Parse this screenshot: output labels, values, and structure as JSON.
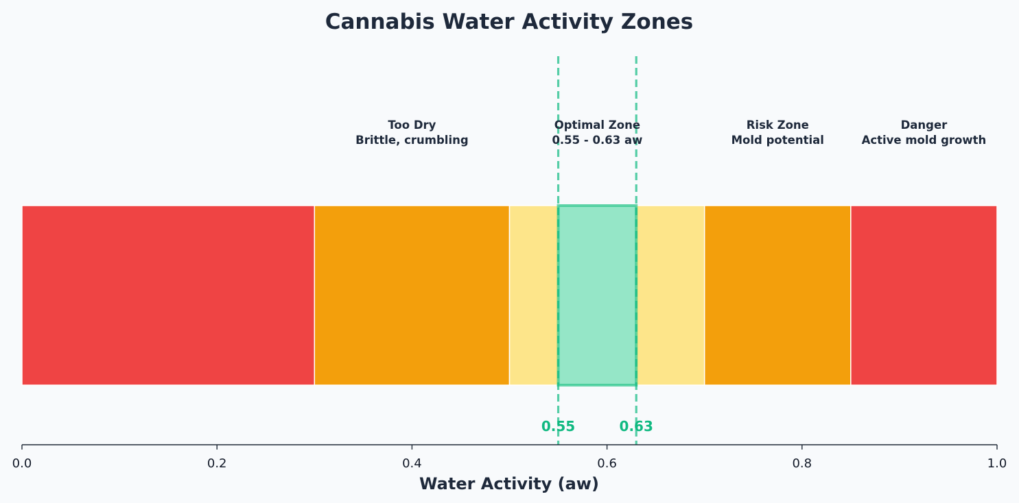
{
  "chart_data": {
    "type": "bar",
    "title": "Cannabis Water Activity Zones",
    "xlabel": "Water Activity (aw)",
    "ylabel": "",
    "xlim": [
      0.0,
      1.0
    ],
    "xticks": [
      "0.0",
      "0.2",
      "0.4",
      "0.6",
      "0.8",
      "1.0"
    ],
    "xtick_values": [
      0.0,
      0.2,
      0.4,
      0.6,
      0.8,
      1.0
    ],
    "grid": false,
    "segments": [
      {
        "start": 0.0,
        "end": 0.3,
        "color": "#ef4444"
      },
      {
        "start": 0.3,
        "end": 0.5,
        "color": "#f39f0c"
      },
      {
        "start": 0.5,
        "end": 0.7,
        "color": "#fde58a"
      },
      {
        "start": 0.7,
        "end": 0.85,
        "color": "#f39f0c"
      },
      {
        "start": 0.85,
        "end": 1.0,
        "color": "#ef4444"
      }
    ],
    "optimal_band": {
      "start": 0.55,
      "end": 0.63,
      "fill": "#95e6c7",
      "edge": "#34c790"
    },
    "reference_lines": [
      {
        "value": 0.55,
        "label": "0.55"
      },
      {
        "value": 0.63,
        "label": "0.63"
      }
    ],
    "reference_color": "#10b981",
    "annotations": [
      {
        "x": 0.4,
        "lines": [
          "Too Dry",
          "Brittle, crumbling"
        ]
      },
      {
        "x": 0.59,
        "lines": [
          "Optimal Zone",
          "0.55 - 0.63 aw"
        ]
      },
      {
        "x": 0.775,
        "lines": [
          "Risk Zone",
          "Mold potential"
        ]
      },
      {
        "x": 0.925,
        "lines": [
          "Danger",
          "Active mold growth"
        ]
      }
    ]
  }
}
